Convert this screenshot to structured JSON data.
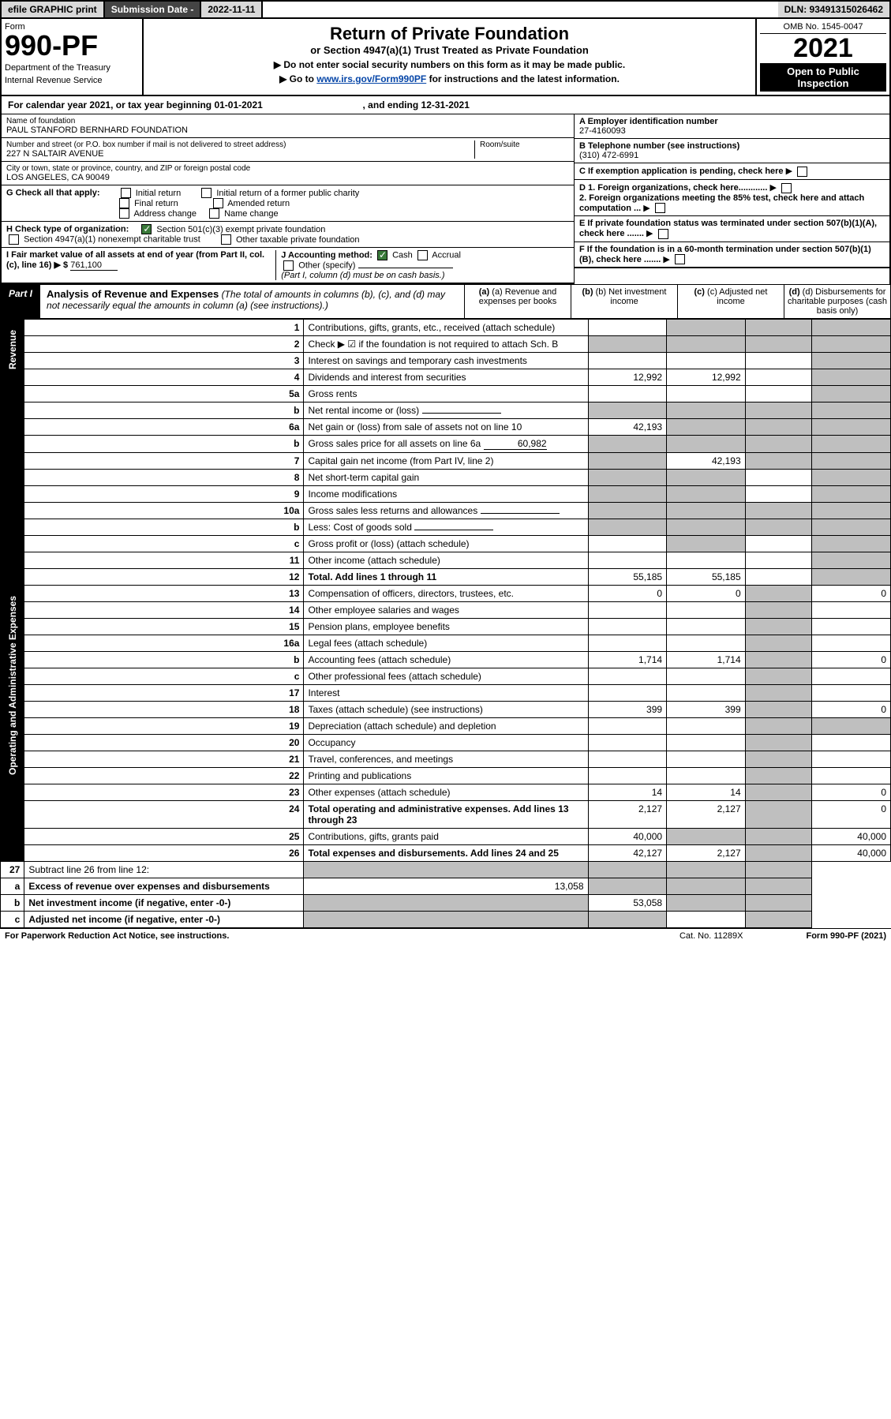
{
  "top": {
    "efile": "efile GRAPHIC print",
    "subdate_lbl": "Submission Date - ",
    "subdate": "2022-11-11",
    "dln": "DLN: 93491315026462"
  },
  "header": {
    "form_lbl": "Form",
    "form_no": "990-PF",
    "dept": "Department of the Treasury",
    "irs": "Internal Revenue Service",
    "title": "Return of Private Foundation",
    "subtitle": "or Section 4947(a)(1) Trust Treated as Private Foundation",
    "note1": "▶ Do not enter social security numbers on this form as it may be made public.",
    "note2_pre": "▶ Go to ",
    "note2_link": "www.irs.gov/Form990PF",
    "note2_post": " for instructions and the latest information.",
    "omb": "OMB No. 1545-0047",
    "year": "2021",
    "open1": "Open to Public",
    "open2": "Inspection"
  },
  "cal": {
    "text_a": "For calendar year 2021, or tax year beginning 01-01-2021",
    "text_b": ", and ending 12-31-2021"
  },
  "name": {
    "lbl": "Name of foundation",
    "val": "PAUL STANFORD BERNHARD FOUNDATION"
  },
  "addr": {
    "lbl": "Number and street (or P.O. box number if mail is not delivered to street address)",
    "val": "227 N SALTAIR AVENUE",
    "room_lbl": "Room/suite"
  },
  "city": {
    "lbl": "City or town, state or province, country, and ZIP or foreign postal code",
    "val": "LOS ANGELES, CA  90049"
  },
  "boxA": {
    "lbl": "A Employer identification number",
    "val": "27-4160093"
  },
  "boxB": {
    "lbl": "B Telephone number (see instructions)",
    "val": "(310) 472-6991"
  },
  "boxC": {
    "lbl": "C If exemption application is pending, check here"
  },
  "boxD": {
    "d1": "D 1. Foreign organizations, check here............",
    "d2": "2. Foreign organizations meeting the 85% test, check here and attach computation ..."
  },
  "boxE": {
    "lbl": "E If private foundation status was terminated under section 507(b)(1)(A), check here ......."
  },
  "boxF": {
    "lbl": "F If the foundation is in a 60-month termination under section 507(b)(1)(B), check here ......."
  },
  "checkG": {
    "lbl": "G Check all that apply:",
    "opts": [
      "Initial return",
      "Final return",
      "Address change",
      "Initial return of a former public charity",
      "Amended return",
      "Name change"
    ]
  },
  "checkH": {
    "lbl": "H Check type of organization:",
    "opt1": "Section 501(c)(3) exempt private foundation",
    "opt2": "Section 4947(a)(1) nonexempt charitable trust",
    "opt3": "Other taxable private foundation"
  },
  "lineI": {
    "lbl": "I Fair market value of all assets at end of year (from Part II, col. (c), line 16) ▶ $",
    "val": "761,100"
  },
  "lineJ": {
    "lbl": "J Accounting method:",
    "opt1": "Cash",
    "opt2": "Accrual",
    "opt3": "Other (specify)",
    "note": "(Part I, column (d) must be on cash basis.)"
  },
  "part1": {
    "tab": "Part I",
    "title": "Analysis of Revenue and Expenses",
    "title_note": "(The total of amounts in columns (b), (c), and (d) may not necessarily equal the amounts in column (a) (see instructions).)",
    "col_a": "(a) Revenue and expenses per books",
    "col_b": "(b) Net investment income",
    "col_c": "(c) Adjusted net income",
    "col_d": "(d) Disbursements for charitable purposes (cash basis only)"
  },
  "side": {
    "rev": "Revenue",
    "exp": "Operating and Administrative Expenses"
  },
  "rows": [
    {
      "n": "1",
      "lbl": "Contributions, gifts, grants, etc., received (attach schedule)",
      "a": "",
      "b": "shaded",
      "c": "shaded",
      "d": "shaded"
    },
    {
      "n": "2",
      "lbl": "Check ▶ ☑ if the foundation is not required to attach Sch. B",
      "a": "shaded",
      "b": "shaded",
      "c": "shaded",
      "d": "shaded",
      "bold_not": true
    },
    {
      "n": "3",
      "lbl": "Interest on savings and temporary cash investments",
      "a": "",
      "b": "",
      "c": "",
      "d": "shaded"
    },
    {
      "n": "4",
      "lbl": "Dividends and interest from securities",
      "a": "12,992",
      "b": "12,992",
      "c": "",
      "d": "shaded"
    },
    {
      "n": "5a",
      "lbl": "Gross rents",
      "a": "",
      "b": "",
      "c": "",
      "d": "shaded"
    },
    {
      "n": "b",
      "lbl": "Net rental income or (loss)",
      "a": "shaded",
      "b": "shaded",
      "c": "shaded",
      "d": "shaded",
      "inline": true
    },
    {
      "n": "6a",
      "lbl": "Net gain or (loss) from sale of assets not on line 10",
      "a": "42,193",
      "b": "shaded",
      "c": "shaded",
      "d": "shaded"
    },
    {
      "n": "b",
      "lbl": "Gross sales price for all assets on line 6a",
      "inline_val": "60,982",
      "a": "shaded",
      "b": "shaded",
      "c": "shaded",
      "d": "shaded"
    },
    {
      "n": "7",
      "lbl": "Capital gain net income (from Part IV, line 2)",
      "a": "shaded",
      "b": "42,193",
      "c": "shaded",
      "d": "shaded"
    },
    {
      "n": "8",
      "lbl": "Net short-term capital gain",
      "a": "shaded",
      "b": "shaded",
      "c": "",
      "d": "shaded"
    },
    {
      "n": "9",
      "lbl": "Income modifications",
      "a": "shaded",
      "b": "shaded",
      "c": "",
      "d": "shaded"
    },
    {
      "n": "10a",
      "lbl": "Gross sales less returns and allowances",
      "a": "shaded",
      "b": "shaded",
      "c": "shaded",
      "d": "shaded",
      "inline": true
    },
    {
      "n": "b",
      "lbl": "Less: Cost of goods sold",
      "a": "shaded",
      "b": "shaded",
      "c": "shaded",
      "d": "shaded",
      "inline": true
    },
    {
      "n": "c",
      "lbl": "Gross profit or (loss) (attach schedule)",
      "a": "",
      "b": "shaded",
      "c": "",
      "d": "shaded"
    },
    {
      "n": "11",
      "lbl": "Other income (attach schedule)",
      "a": "",
      "b": "",
      "c": "",
      "d": "shaded"
    },
    {
      "n": "12",
      "lbl": "Total. Add lines 1 through 11",
      "a": "55,185",
      "b": "55,185",
      "c": "",
      "d": "shaded",
      "bold": true
    }
  ],
  "exp_rows": [
    {
      "n": "13",
      "lbl": "Compensation of officers, directors, trustees, etc.",
      "a": "0",
      "b": "0",
      "c": "shaded",
      "d": "0"
    },
    {
      "n": "14",
      "lbl": "Other employee salaries and wages",
      "a": "",
      "b": "",
      "c": "shaded",
      "d": ""
    },
    {
      "n": "15",
      "lbl": "Pension plans, employee benefits",
      "a": "",
      "b": "",
      "c": "shaded",
      "d": ""
    },
    {
      "n": "16a",
      "lbl": "Legal fees (attach schedule)",
      "a": "",
      "b": "",
      "c": "shaded",
      "d": ""
    },
    {
      "n": "b",
      "lbl": "Accounting fees (attach schedule)",
      "a": "1,714",
      "b": "1,714",
      "c": "shaded",
      "d": "0"
    },
    {
      "n": "c",
      "lbl": "Other professional fees (attach schedule)",
      "a": "",
      "b": "",
      "c": "shaded",
      "d": ""
    },
    {
      "n": "17",
      "lbl": "Interest",
      "a": "",
      "b": "",
      "c": "shaded",
      "d": ""
    },
    {
      "n": "18",
      "lbl": "Taxes (attach schedule) (see instructions)",
      "a": "399",
      "b": "399",
      "c": "shaded",
      "d": "0"
    },
    {
      "n": "19",
      "lbl": "Depreciation (attach schedule) and depletion",
      "a": "",
      "b": "",
      "c": "shaded",
      "d": "shaded"
    },
    {
      "n": "20",
      "lbl": "Occupancy",
      "a": "",
      "b": "",
      "c": "shaded",
      "d": ""
    },
    {
      "n": "21",
      "lbl": "Travel, conferences, and meetings",
      "a": "",
      "b": "",
      "c": "shaded",
      "d": ""
    },
    {
      "n": "22",
      "lbl": "Printing and publications",
      "a": "",
      "b": "",
      "c": "shaded",
      "d": ""
    },
    {
      "n": "23",
      "lbl": "Other expenses (attach schedule)",
      "a": "14",
      "b": "14",
      "c": "shaded",
      "d": "0"
    },
    {
      "n": "24",
      "lbl": "Total operating and administrative expenses. Add lines 13 through 23",
      "a": "2,127",
      "b": "2,127",
      "c": "shaded",
      "d": "0",
      "bold": true
    },
    {
      "n": "25",
      "lbl": "Contributions, gifts, grants paid",
      "a": "40,000",
      "b": "shaded",
      "c": "shaded",
      "d": "40,000"
    },
    {
      "n": "26",
      "lbl": "Total expenses and disbursements. Add lines 24 and 25",
      "a": "42,127",
      "b": "2,127",
      "c": "shaded",
      "d": "40,000",
      "bold": true
    }
  ],
  "end_rows": [
    {
      "n": "27",
      "lbl": "Subtract line 26 from line 12:",
      "a": "shaded",
      "b": "shaded",
      "c": "shaded",
      "d": "shaded"
    },
    {
      "n": "a",
      "lbl": "Excess of revenue over expenses and disbursements",
      "a": "13,058",
      "b": "shaded",
      "c": "shaded",
      "d": "shaded",
      "bold": true
    },
    {
      "n": "b",
      "lbl": "Net investment income (if negative, enter -0-)",
      "a": "shaded",
      "b": "53,058",
      "c": "shaded",
      "d": "shaded",
      "bold": true
    },
    {
      "n": "c",
      "lbl": "Adjusted net income (if negative, enter -0-)",
      "a": "shaded",
      "b": "shaded",
      "c": "",
      "d": "shaded",
      "bold": true
    }
  ],
  "footer": {
    "left": "For Paperwork Reduction Act Notice, see instructions.",
    "mid": "Cat. No. 11289X",
    "right": "Form 990-PF (2021)"
  },
  "colors": {
    "header_dark": "#444444",
    "header_grey": "#d8d8d8",
    "shaded": "#bfbfbf",
    "link": "#0646a8",
    "check_green": "#3a7a3a"
  }
}
